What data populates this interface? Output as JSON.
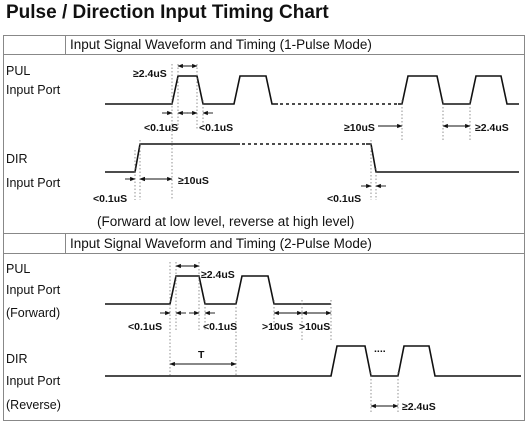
{
  "title": "Pulse / Direction Input Timing Chart",
  "sections": [
    {
      "header": "Input Signal Waveform and Timing (1-Pulse Mode)",
      "pul_label": [
        "PUL",
        "Input Port"
      ],
      "dir_label": [
        "DIR",
        "Input Port"
      ],
      "timing": {
        "t_pulse_width": "≥2.4uS",
        "t_rise": "<0.1uS",
        "t_fall": "<0.1uS",
        "t_setup": "≥10uS",
        "t_low": "≥2.4uS",
        "t_dir_rise": "<0.1uS",
        "t_dir_hold": "≥10uS",
        "t_dir_fall": "<0.1uS"
      },
      "note": "(Forward at low level, reverse at high level)"
    },
    {
      "header": "Input Signal Waveform and Timing (2-Pulse Mode)",
      "pul_label": [
        "PUL",
        "Input Port",
        "(Forward)"
      ],
      "dir_label": [
        "DIR",
        "Input Port",
        "(Reverse)"
      ],
      "timing": {
        "t_pulse_width": "≥2.4uS",
        "t_rise": "<0.1uS",
        "t_fall": "<0.1uS",
        "t_gap1": ">10uS",
        "t_gap2": ">10uS",
        "t_period": "T",
        "t_dots": "....",
        "t_rev_width": "≥2.4uS"
      }
    }
  ]
}
